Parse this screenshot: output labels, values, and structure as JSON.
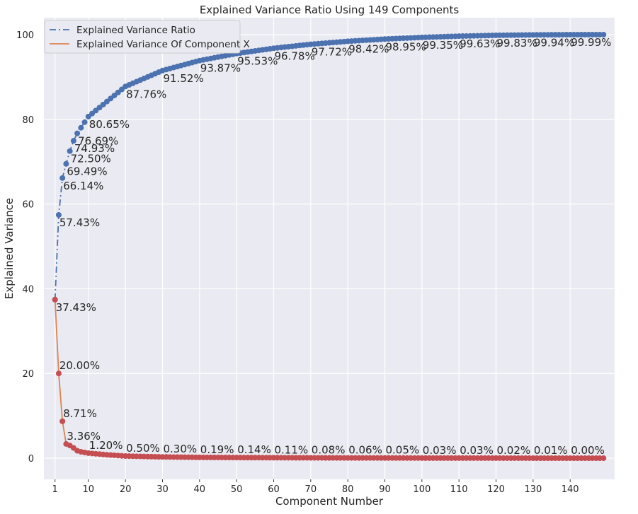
{
  "colors": {
    "ratio_line": "#4c72b0",
    "ratio_points": "#4c72b0",
    "component_line": "#dd8452",
    "component_points": "#c44e52",
    "plot_bg": "#eaeaf2",
    "grid": "#ffffff"
  },
  "chart_data": {
    "type": "line",
    "title": "Explained Variance Ratio Using 149 Components",
    "xlabel": "Component Number",
    "ylabel": "Explained Variance",
    "xlim": [
      -2,
      152
    ],
    "ylim": [
      -5,
      104
    ],
    "x_ticks": [
      1,
      10,
      20,
      30,
      40,
      50,
      60,
      70,
      80,
      90,
      100,
      110,
      120,
      130,
      140
    ],
    "y_ticks": [
      0,
      20,
      40,
      60,
      80,
      100
    ],
    "grid": true,
    "legend": {
      "position": "top-left",
      "entries": [
        "Explained Variance Ratio",
        "Explained Variance Of Component X"
      ]
    },
    "n_components": 149,
    "series": [
      {
        "name": "Explained Variance Ratio",
        "style": "dash-dot line with circle markers",
        "known_points": [
          [
            1,
            37.43
          ],
          [
            2,
            57.43
          ],
          [
            3,
            66.14
          ],
          [
            4,
            69.49
          ],
          [
            5,
            72.5
          ],
          [
            6,
            74.93
          ],
          [
            7,
            76.69
          ],
          [
            10,
            80.65
          ],
          [
            20,
            87.76
          ],
          [
            30,
            91.52
          ],
          [
            40,
            93.87
          ],
          [
            50,
            95.53
          ],
          [
            60,
            96.78
          ],
          [
            70,
            97.72
          ],
          [
            80,
            98.42
          ],
          [
            90,
            98.95
          ],
          [
            100,
            99.35
          ],
          [
            110,
            99.63
          ],
          [
            120,
            99.83
          ],
          [
            130,
            99.94
          ],
          [
            140,
            99.99
          ],
          [
            149,
            100.0
          ]
        ],
        "annotations": [
          {
            "x": 1,
            "y": 37.43,
            "label": "37.43%"
          },
          {
            "x": 2,
            "y": 57.43,
            "label": "57.43%"
          },
          {
            "x": 3,
            "y": 66.14,
            "label": "66.14%"
          },
          {
            "x": 4,
            "y": 69.49,
            "label": "69.49%"
          },
          {
            "x": 5,
            "y": 72.5,
            "label": "72.50%"
          },
          {
            "x": 6,
            "y": 74.93,
            "label": "74.93%"
          },
          {
            "x": 7,
            "y": 76.69,
            "label": "76.69%"
          },
          {
            "x": 10,
            "y": 80.65,
            "label": "80.65%"
          },
          {
            "x": 20,
            "y": 87.76,
            "label": "87.76%"
          },
          {
            "x": 30,
            "y": 91.52,
            "label": "91.52%"
          },
          {
            "x": 40,
            "y": 93.87,
            "label": "93.87%"
          },
          {
            "x": 50,
            "y": 95.53,
            "label": "95.53%"
          },
          {
            "x": 60,
            "y": 96.78,
            "label": "96.78%"
          },
          {
            "x": 70,
            "y": 97.72,
            "label": "97.72%"
          },
          {
            "x": 80,
            "y": 98.42,
            "label": "98.42%"
          },
          {
            "x": 90,
            "y": 98.95,
            "label": "98.95%"
          },
          {
            "x": 100,
            "y": 99.35,
            "label": "99.35%"
          },
          {
            "x": 110,
            "y": 99.63,
            "label": "99.63%"
          },
          {
            "x": 120,
            "y": 99.83,
            "label": "99.83%"
          },
          {
            "x": 130,
            "y": 99.94,
            "label": "99.94%"
          },
          {
            "x": 140,
            "y": 99.99,
            "label": "99.99%"
          }
        ]
      },
      {
        "name": "Explained Variance Of Component X",
        "style": "solid line with circle markers",
        "known_points": [
          [
            1,
            37.43
          ],
          [
            2,
            20.0
          ],
          [
            3,
            8.71
          ],
          [
            4,
            3.36
          ],
          [
            5,
            3.0
          ],
          [
            6,
            2.43
          ],
          [
            7,
            1.76
          ],
          [
            8,
            1.5
          ],
          [
            9,
            1.35
          ],
          [
            10,
            1.2
          ],
          [
            15,
            0.8
          ],
          [
            20,
            0.5
          ],
          [
            30,
            0.3
          ],
          [
            40,
            0.19
          ],
          [
            50,
            0.14
          ],
          [
            60,
            0.11
          ],
          [
            70,
            0.08
          ],
          [
            80,
            0.06
          ],
          [
            90,
            0.05
          ],
          [
            100,
            0.03
          ],
          [
            110,
            0.03
          ],
          [
            120,
            0.02
          ],
          [
            130,
            0.01
          ],
          [
            140,
            0.0
          ],
          [
            149,
            0.0
          ]
        ],
        "annotations": [
          {
            "x": 2,
            "y": 20.0,
            "label": "20.00%"
          },
          {
            "x": 3,
            "y": 8.71,
            "label": "8.71%"
          },
          {
            "x": 4,
            "y": 3.36,
            "label": "3.36%"
          },
          {
            "x": 10,
            "y": 1.2,
            "label": "1.20%"
          },
          {
            "x": 20,
            "y": 0.5,
            "label": "0.50%"
          },
          {
            "x": 30,
            "y": 0.3,
            "label": "0.30%"
          },
          {
            "x": 40,
            "y": 0.19,
            "label": "0.19%"
          },
          {
            "x": 50,
            "y": 0.14,
            "label": "0.14%"
          },
          {
            "x": 60,
            "y": 0.11,
            "label": "0.11%"
          },
          {
            "x": 70,
            "y": 0.08,
            "label": "0.08%"
          },
          {
            "x": 80,
            "y": 0.06,
            "label": "0.06%"
          },
          {
            "x": 90,
            "y": 0.05,
            "label": "0.05%"
          },
          {
            "x": 100,
            "y": 0.03,
            "label": "0.03%"
          },
          {
            "x": 110,
            "y": 0.03,
            "label": "0.03%"
          },
          {
            "x": 120,
            "y": 0.02,
            "label": "0.02%"
          },
          {
            "x": 130,
            "y": 0.01,
            "label": "0.01%"
          },
          {
            "x": 140,
            "y": 0.0,
            "label": "0.00%"
          }
        ]
      }
    ]
  }
}
